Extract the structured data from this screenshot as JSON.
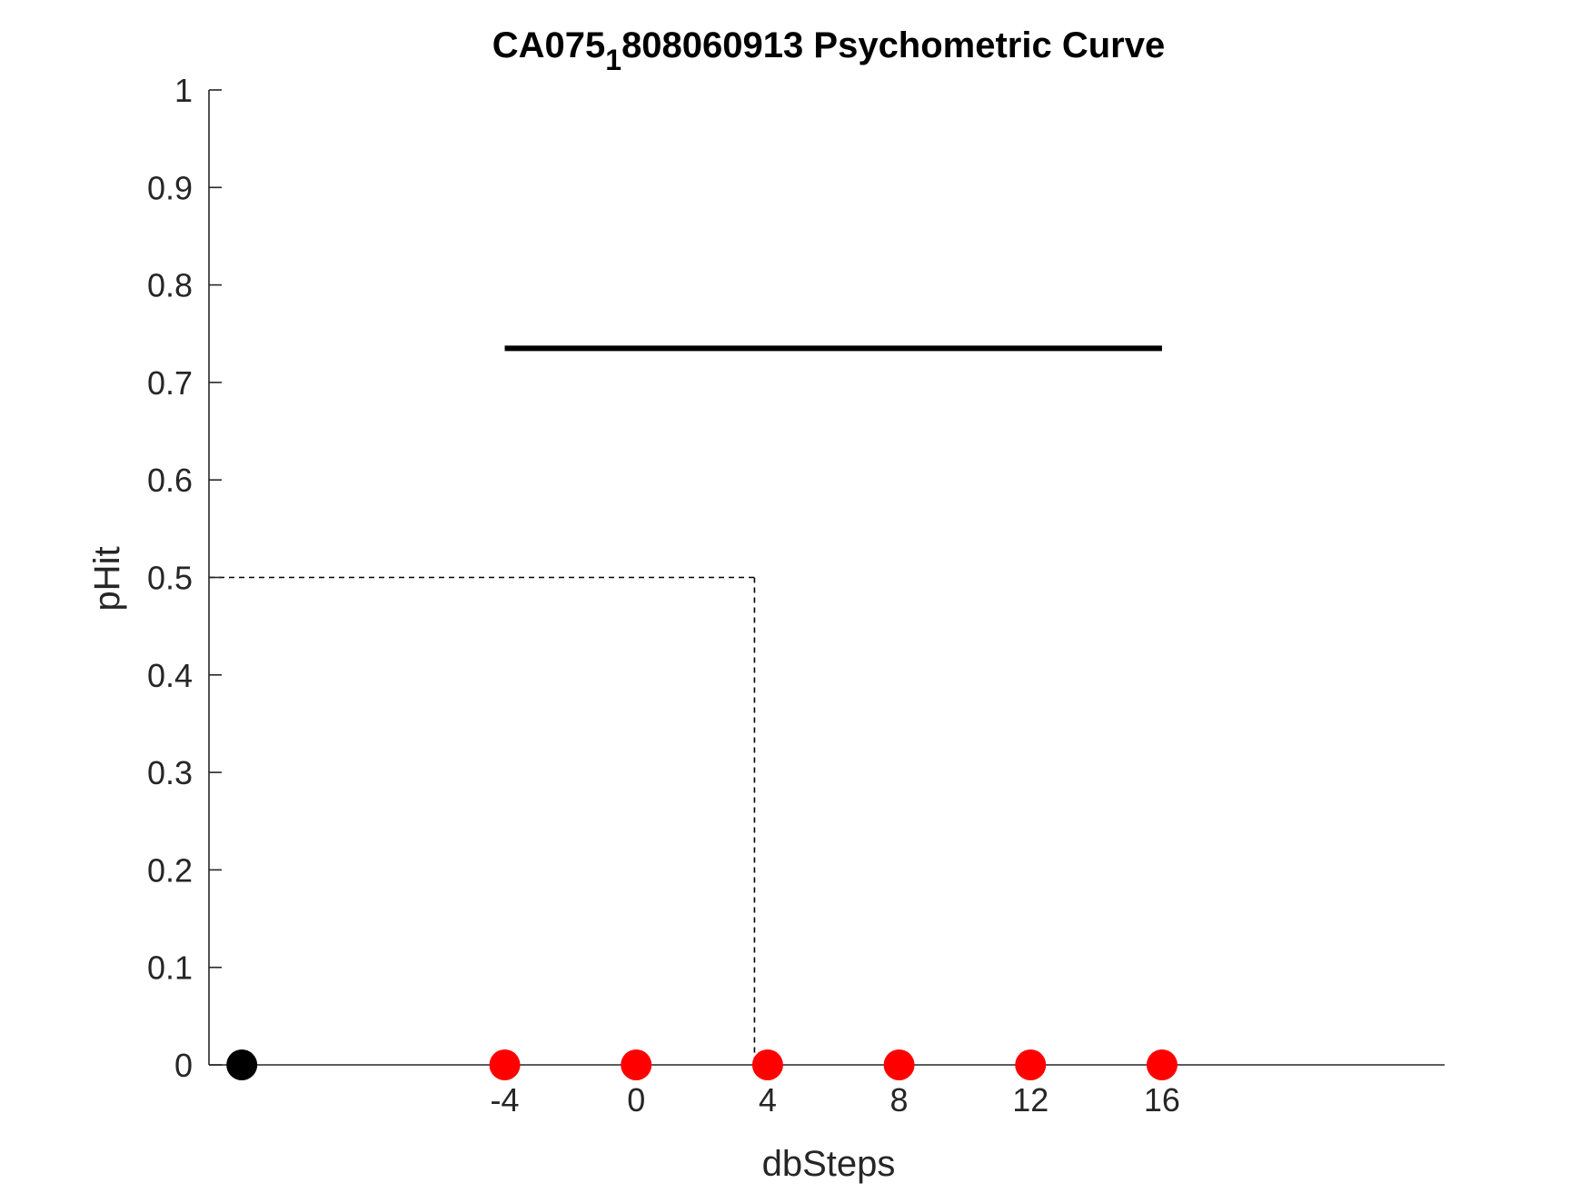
{
  "chart_data": {
    "type": "scatter",
    "title": "CA075_1808060913 Psychometric Curve",
    "title_parts": {
      "prefix": "CA075",
      "subscript": "1",
      "suffix": "808060913 Psychometric Curve"
    },
    "xlabel": "dbSteps",
    "ylabel": "pHit",
    "xlim": [
      -13,
      24.6
    ],
    "ylim": [
      0,
      1
    ],
    "xticks": [
      -4,
      0,
      4,
      8,
      12,
      16
    ],
    "xtick_labels": [
      "-4",
      "0",
      "4",
      "8",
      "12",
      "16"
    ],
    "yticks": [
      0,
      0.1,
      0.2,
      0.3,
      0.4,
      0.5,
      0.6,
      0.7,
      0.8,
      0.9,
      1
    ],
    "ytick_labels": [
      "0",
      "0.1",
      "0.2",
      "0.3",
      "0.4",
      "0.5",
      "0.6",
      "0.7",
      "0.8",
      "0.9",
      "1"
    ],
    "grid": false,
    "series": [
      {
        "color": "#000000",
        "x": [
          -12
        ],
        "y": [
          0
        ]
      },
      {
        "color": "#ff0000",
        "x": [
          -4,
          0,
          4,
          8,
          12,
          16
        ],
        "y": [
          0,
          0,
          0,
          0,
          0,
          0
        ]
      }
    ],
    "fit_line": {
      "color": "#000000",
      "x": [
        -4,
        16
      ],
      "y": [
        0.735,
        0.735
      ]
    },
    "threshold": {
      "x": 3.6,
      "y": 0.5,
      "style": "dashed"
    }
  }
}
